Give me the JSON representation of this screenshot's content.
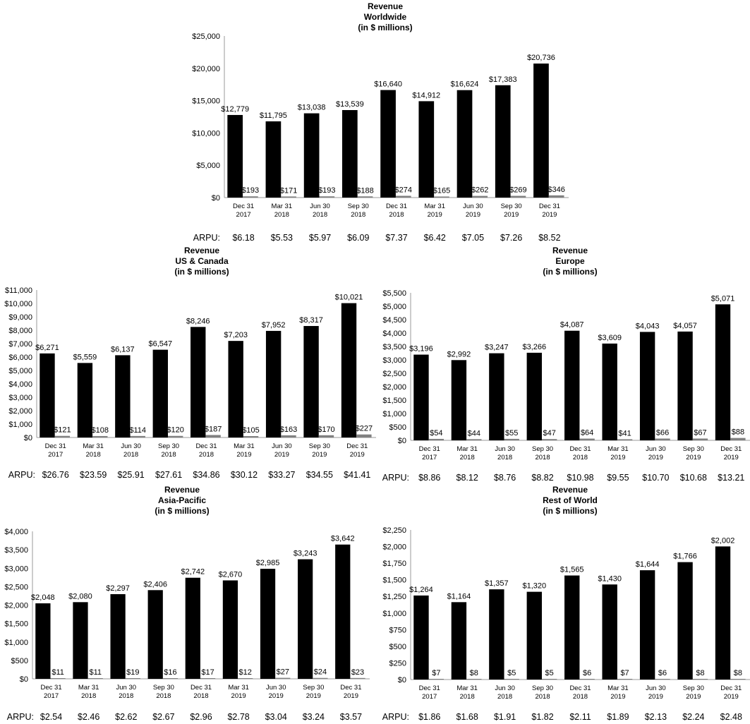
{
  "colors": {
    "revenue_bar": "#000000",
    "arpu_bar": "#808080",
    "axis": "#999999"
  },
  "chart_data": [
    {
      "id": "worldwide",
      "type": "bar",
      "title_lines": [
        "Revenue",
        "Worldwide",
        "(in $ millions)"
      ],
      "categories": [
        [
          "Dec 31",
          "2017"
        ],
        [
          "Mar 31",
          "2018"
        ],
        [
          "Jun 30",
          "2018"
        ],
        [
          "Sep 30",
          "2018"
        ],
        [
          "Dec 31",
          "2018"
        ],
        [
          "Mar 31",
          "2019"
        ],
        [
          "Jun 30",
          "2019"
        ],
        [
          "Sep 30",
          "2019"
        ],
        [
          "Dec 31",
          "2019"
        ]
      ],
      "yticks": [
        "$0",
        "$5,000",
        "$10,000",
        "$15,000",
        "$20,000",
        "$25,000"
      ],
      "ylim": [
        0,
        25000
      ],
      "grid": false,
      "revenue": [
        12779,
        11795,
        13038,
        13539,
        16640,
        14912,
        16624,
        17383,
        20736
      ],
      "revenue_labels": [
        "$12,779",
        "$11,795",
        "$13,038",
        "$13,539",
        "$16,640",
        "$14,912",
        "$16,624",
        "$17,383",
        "$20,736"
      ],
      "secondary": [
        193,
        171,
        193,
        188,
        274,
        165,
        262,
        269,
        346
      ],
      "secondary_labels": [
        "$193",
        "$171",
        "$193",
        "$188",
        "$274",
        "$165",
        "$262",
        "$269",
        "$346"
      ],
      "arpu_label": "ARPU:",
      "arpu": [
        "$6.18",
        "$5.53",
        "$5.97",
        "$6.09",
        "$7.37",
        "$6.42",
        "$7.05",
        "$7.26",
        "$8.52"
      ]
    },
    {
      "id": "us-canada",
      "type": "bar",
      "title_lines": [
        "Revenue",
        "US & Canada",
        "(in $ millions)"
      ],
      "categories": [
        [
          "Dec 31",
          "2017"
        ],
        [
          "Mar 31",
          "2018"
        ],
        [
          "Jun 30",
          "2018"
        ],
        [
          "Sep 30",
          "2018"
        ],
        [
          "Dec 31",
          "2018"
        ],
        [
          "Mar 31",
          "2019"
        ],
        [
          "Jun 30",
          "2019"
        ],
        [
          "Sep 30",
          "2019"
        ],
        [
          "Dec 31",
          "2019"
        ]
      ],
      "yticks": [
        "$0",
        "$1,000",
        "$2,000",
        "$3,000",
        "$4,000",
        "$5,000",
        "$6,000",
        "$7,000",
        "$8,000",
        "$9,000",
        "$10,000",
        "$11,000"
      ],
      "ylim": [
        0,
        11000
      ],
      "grid": false,
      "revenue": [
        6271,
        5559,
        6137,
        6547,
        8246,
        7203,
        7952,
        8317,
        10021
      ],
      "revenue_labels": [
        "$6,271",
        "$5,559",
        "$6,137",
        "$6,547",
        "$8,246",
        "$7,203",
        "$7,952",
        "$8,317",
        "$10,021"
      ],
      "secondary": [
        121,
        108,
        114,
        120,
        187,
        105,
        163,
        170,
        227
      ],
      "secondary_labels": [
        "$121",
        "$108",
        "$114",
        "$120",
        "$187",
        "$105",
        "$163",
        "$170",
        "$227"
      ],
      "arpu_label": "ARPU:",
      "arpu": [
        "$26.76",
        "$23.59",
        "$25.91",
        "$27.61",
        "$34.86",
        "$30.12",
        "$33.27",
        "$34.55",
        "$41.41"
      ]
    },
    {
      "id": "europe",
      "type": "bar",
      "title_lines": [
        "Revenue",
        "Europe",
        "(in $ millions)"
      ],
      "categories": [
        [
          "Dec 31",
          "2017"
        ],
        [
          "Mar 31",
          "2018"
        ],
        [
          "Jun 30",
          "2018"
        ],
        [
          "Sep 30",
          "2018"
        ],
        [
          "Dec 31",
          "2018"
        ],
        [
          "Mar 31",
          "2019"
        ],
        [
          "Jun 30",
          "2019"
        ],
        [
          "Sep 30",
          "2019"
        ],
        [
          "Dec 31",
          "2019"
        ]
      ],
      "yticks": [
        "$0",
        "$500",
        "$1,000",
        "$1,500",
        "$2,000",
        "$2,500",
        "$3,000",
        "$3,500",
        "$4,000",
        "$4,500",
        "$5,000",
        "$5,500"
      ],
      "ylim": [
        0,
        5500
      ],
      "grid": false,
      "revenue": [
        3196,
        2992,
        3247,
        3266,
        4087,
        3609,
        4043,
        4057,
        5071
      ],
      "revenue_labels": [
        "$3,196",
        "$2,992",
        "$3,247",
        "$3,266",
        "$4,087",
        "$3,609",
        "$4,043",
        "$4,057",
        "$5,071"
      ],
      "secondary": [
        54,
        44,
        55,
        47,
        64,
        41,
        66,
        67,
        88
      ],
      "secondary_labels": [
        "$54",
        "$44",
        "$55",
        "$47",
        "$64",
        "$41",
        "$66",
        "$67",
        "$88"
      ],
      "arpu_label": "ARPU:",
      "arpu": [
        "$8.86",
        "$8.12",
        "$8.76",
        "$8.82",
        "$10.98",
        "$9.55",
        "$10.70",
        "$10.68",
        "$13.21"
      ]
    },
    {
      "id": "asia-pacific",
      "type": "bar",
      "title_lines": [
        "Revenue",
        "Asia-Pacific",
        "(in $ millions)"
      ],
      "categories": [
        [
          "Dec 31",
          "2017"
        ],
        [
          "Mar 31",
          "2018"
        ],
        [
          "Jun 30",
          "2018"
        ],
        [
          "Sep 30",
          "2018"
        ],
        [
          "Dec 31",
          "2018"
        ],
        [
          "Mar 31",
          "2019"
        ],
        [
          "Jun 30",
          "2019"
        ],
        [
          "Sep 30",
          "2019"
        ],
        [
          "Dec 31",
          "2019"
        ]
      ],
      "yticks": [
        "$0",
        "$500",
        "$1,000",
        "$1,500",
        "$2,000",
        "$2,500",
        "$3,000",
        "$3,500",
        "$4,000"
      ],
      "ylim": [
        0,
        4000
      ],
      "grid": false,
      "revenue": [
        2048,
        2080,
        2297,
        2406,
        2742,
        2670,
        2985,
        3243,
        3642
      ],
      "revenue_labels": [
        "$2,048",
        "$2,080",
        "$2,297",
        "$2,406",
        "$2,742",
        "$2,670",
        "$2,985",
        "$3,243",
        "$3,642"
      ],
      "secondary": [
        11,
        11,
        19,
        16,
        17,
        12,
        27,
        24,
        23
      ],
      "secondary_labels": [
        "$11",
        "$11",
        "$19",
        "$16",
        "$17",
        "$12",
        "$27",
        "$24",
        "$23"
      ],
      "arpu_label": "ARPU:",
      "arpu": [
        "$2.54",
        "$2.46",
        "$2.62",
        "$2.67",
        "$2.96",
        "$2.78",
        "$3.04",
        "$3.24",
        "$3.57"
      ]
    },
    {
      "id": "rest-of-world",
      "type": "bar",
      "title_lines": [
        "Revenue",
        "Rest of World",
        "(in $ millions)"
      ],
      "categories": [
        [
          "Dec 31",
          "2017"
        ],
        [
          "Mar 31",
          "2018"
        ],
        [
          "Jun 30",
          "2018"
        ],
        [
          "Sep 30",
          "2018"
        ],
        [
          "Dec 31",
          "2018"
        ],
        [
          "Mar 31",
          "2019"
        ],
        [
          "Jun 30",
          "2019"
        ],
        [
          "Sep 30",
          "2019"
        ],
        [
          "Dec 31",
          "2019"
        ]
      ],
      "yticks": [
        "$0",
        "$250",
        "$500",
        "$750",
        "$1,000",
        "$1,250",
        "$1,500",
        "$1,750",
        "$2,000",
        "$2,250"
      ],
      "ylim": [
        0,
        2250
      ],
      "grid": false,
      "revenue": [
        1264,
        1164,
        1357,
        1320,
        1565,
        1430,
        1644,
        1766,
        2002
      ],
      "revenue_labels": [
        "$1,264",
        "$1,164",
        "$1,357",
        "$1,320",
        "$1,565",
        "$1,430",
        "$1,644",
        "$1,766",
        "$2,002"
      ],
      "secondary": [
        7,
        8,
        5,
        5,
        6,
        7,
        6,
        8,
        8
      ],
      "secondary_labels": [
        "$7",
        "$8",
        "$5",
        "$5",
        "$6",
        "$7",
        "$6",
        "$8",
        "$8"
      ],
      "arpu_label": "ARPU:",
      "arpu": [
        "$1.86",
        "$1.68",
        "$1.91",
        "$1.82",
        "$2.11",
        "$1.89",
        "$2.13",
        "$2.24",
        "$2.48"
      ]
    }
  ]
}
